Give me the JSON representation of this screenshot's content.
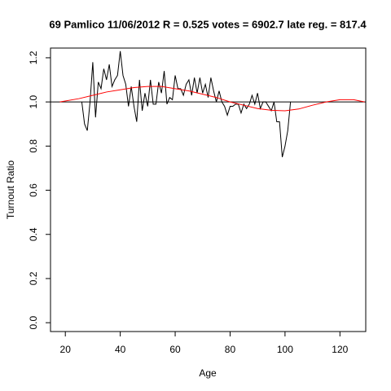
{
  "chart_data": {
    "type": "line",
    "title": "69 Pamlico 11/06/2012 R = 0.525 votes = 6902.7 late reg. = 817.4",
    "xlabel": "Age",
    "ylabel": "Turnout Ratio",
    "xlim": [
      14.6,
      129.4
    ],
    "ylim": [
      -0.04,
      1.244
    ],
    "xticks": [
      20,
      40,
      60,
      80,
      100,
      120
    ],
    "yticks": [
      {
        "value": 0,
        "label": "0.0"
      },
      {
        "value": 0.2,
        "label": "0.2"
      },
      {
        "value": 0.4,
        "label": "0.4"
      },
      {
        "value": 0.6,
        "label": "0.6"
      },
      {
        "value": 0.8,
        "label": "0.8"
      },
      {
        "value": 1,
        "label": "1.0"
      },
      {
        "value": 1.2,
        "label": "1.2"
      }
    ],
    "hline": 1,
    "hline_color": "#000000",
    "series": [
      {
        "color": "#000000",
        "x": [
          26,
          27,
          28,
          29,
          30,
          31,
          32,
          33,
          34,
          35,
          36,
          37,
          38,
          39,
          40,
          41,
          42,
          43,
          44,
          45,
          46,
          47,
          48,
          49,
          50,
          51,
          52,
          53,
          54,
          55,
          56,
          57,
          58,
          59,
          60,
          61,
          62,
          63,
          64,
          65,
          66,
          67,
          68,
          69,
          70,
          71,
          72,
          73,
          74,
          75,
          76,
          77,
          78,
          79,
          80,
          81,
          82,
          83,
          84,
          85,
          86,
          87,
          88,
          89,
          90,
          91,
          92,
          93,
          94,
          95,
          96,
          97,
          98,
          99,
          100,
          101,
          102
        ],
        "values": [
          1.0,
          0.9,
          0.87,
          1.0,
          1.18,
          0.93,
          1.09,
          1.06,
          1.15,
          1.1,
          1.17,
          1.07,
          1.1,
          1.12,
          1.23,
          1.12,
          1.08,
          0.98,
          1.07,
          0.98,
          0.91,
          1.1,
          0.96,
          1.04,
          0.98,
          1.1,
          0.99,
          0.99,
          1.09,
          1.04,
          1.14,
          0.99,
          1.02,
          1.01,
          1.12,
          1.06,
          1.06,
          1.03,
          1.08,
          1.1,
          1.03,
          1.11,
          1.04,
          1.11,
          1.04,
          1.08,
          1.02,
          1.11,
          1.05,
          1.0,
          1.05,
          1.0,
          0.98,
          0.94,
          0.98,
          0.98,
          0.99,
          0.99,
          0.95,
          0.99,
          0.97,
          0.99,
          1.03,
          0.99,
          1.04,
          0.97,
          1.0,
          1.0,
          0.98,
          0.96,
          1.0,
          0.91,
          0.91,
          0.75,
          0.8,
          0.87,
          1.0
        ]
      },
      {
        "color": "#ff0000",
        "x": [
          18,
          25,
          30,
          35,
          40,
          45,
          50,
          55,
          60,
          65,
          70,
          75,
          80,
          85,
          90,
          95,
          100,
          105,
          110,
          115,
          120,
          125,
          129
        ],
        "values": [
          1.0,
          1.015,
          1.03,
          1.045,
          1.055,
          1.065,
          1.07,
          1.07,
          1.06,
          1.05,
          1.035,
          1.02,
          1.0,
          0.985,
          0.97,
          0.962,
          0.96,
          0.968,
          0.985,
          1.0,
          1.01,
          1.01,
          1.0
        ]
      }
    ]
  }
}
